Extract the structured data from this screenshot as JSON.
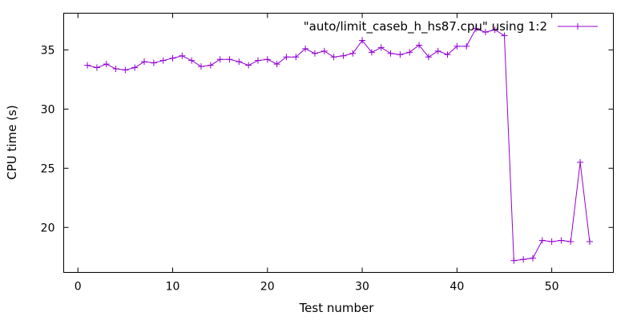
{
  "chart_data": {
    "type": "line",
    "title": "",
    "xlabel": "Test number",
    "ylabel": "CPU time (s)",
    "xlim": [
      -1.5,
      56.5
    ],
    "ylim": [
      16.2,
      38.1
    ],
    "xticks": [
      0,
      10,
      20,
      30,
      40,
      50
    ],
    "yticks": [
      20,
      25,
      30,
      35
    ],
    "legend_position": "top-right",
    "grid": false,
    "series": [
      {
        "name": "\"auto/limit_caseb_h_hs87.cpu\" using 1:2",
        "color": "#9400d3",
        "marker": "plus",
        "x": [
          1,
          2,
          3,
          4,
          5,
          6,
          7,
          8,
          9,
          10,
          11,
          12,
          13,
          14,
          15,
          16,
          17,
          18,
          19,
          20,
          21,
          22,
          23,
          24,
          25,
          26,
          27,
          28,
          29,
          30,
          31,
          32,
          33,
          34,
          35,
          36,
          37,
          38,
          39,
          40,
          41,
          42,
          43,
          44,
          45,
          46,
          47,
          48,
          49,
          50,
          51,
          52,
          53,
          54
        ],
        "y": [
          33.7,
          33.5,
          33.8,
          33.4,
          33.3,
          33.5,
          34.0,
          33.9,
          34.1,
          34.3,
          34.5,
          34.1,
          33.6,
          33.7,
          34.2,
          34.2,
          34.0,
          33.7,
          34.1,
          34.2,
          33.8,
          34.4,
          34.4,
          35.1,
          34.7,
          34.9,
          34.4,
          34.5,
          34.7,
          35.8,
          34.8,
          35.2,
          34.7,
          34.6,
          34.8,
          35.4,
          34.4,
          34.9,
          34.6,
          35.3,
          35.3,
          36.8,
          36.5,
          36.7,
          36.2,
          17.2,
          17.3,
          17.4,
          18.9,
          18.8,
          18.9,
          18.8,
          25.5,
          18.8
        ]
      }
    ]
  }
}
